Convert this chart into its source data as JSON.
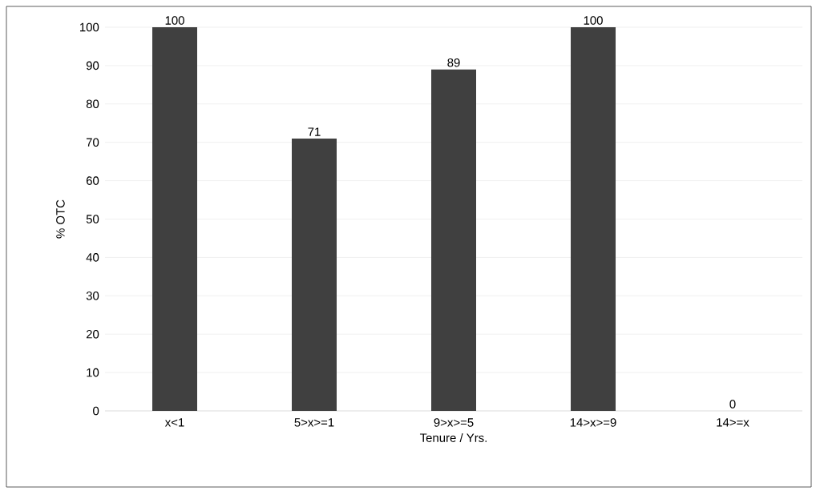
{
  "chart_data": {
    "type": "bar",
    "xlabel": "Tenure / Yrs.",
    "ylabel": "% OTC",
    "categories": [
      "x<1",
      "5>x>=1",
      "9>x>=5",
      "14>x>=9",
      "14>=x"
    ],
    "values": [
      100,
      71,
      89,
      100,
      0
    ],
    "color": "#404040",
    "ylim": [
      0,
      100
    ],
    "yticks": [
      0,
      10,
      20,
      30,
      40,
      50,
      60,
      70,
      80,
      90,
      100
    ],
    "grid": "y",
    "data_labels": true
  }
}
